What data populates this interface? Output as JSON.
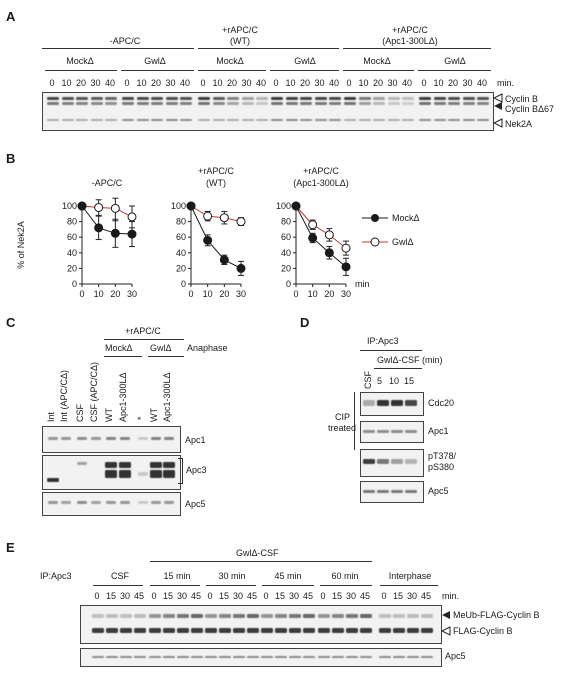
{
  "panels": {
    "A": {
      "letter": "A",
      "groups": [
        "-APC/C",
        "+rAPC/C\n(WT)",
        "+rAPC/C\n(Apc1-300LΔ)"
      ],
      "conditions": [
        "MockΔ",
        "GwlΔ"
      ],
      "timepoints": [
        "0",
        "10",
        "20",
        "30",
        "40"
      ],
      "unit": "min.",
      "bands": [
        "Cyclin B",
        "Cyclin BΔ67",
        "Nek2A"
      ]
    },
    "B": {
      "letter": "B",
      "ylabel": "% of Nek2A",
      "unit": "min",
      "legend": [
        "MockΔ",
        "GwlΔ"
      ]
    },
    "C": {
      "letter": "C",
      "header": "+rAPC/C",
      "conditions": [
        "MockΔ",
        "GwlΔ"
      ],
      "anaphase": "Anaphase",
      "lanes": [
        "Int",
        "Int (APC/CΔ)",
        "CSF",
        "CSF (APC/CΔ)",
        "WT",
        "Apc1-300LΔ",
        "*",
        "WT",
        "Apc1-300LΔ"
      ],
      "bands": [
        "Apc1",
        "Apc3",
        "Apc5"
      ]
    },
    "D": {
      "letter": "D",
      "ip": "IP:Apc3",
      "condition": "GwlΔ-CSF (min)",
      "lanes": [
        "CSF",
        "5",
        "10",
        "15"
      ],
      "side_label": "CIP\ntreated",
      "bands": [
        "Cdc20",
        "Apc1",
        "pT378/\npS380",
        "Apc5"
      ]
    },
    "E": {
      "letter": "E",
      "ip": "IP:Apc3",
      "condition": "GwlΔ-CSF",
      "groups": [
        "CSF",
        "15 min",
        "30 min",
        "45 min",
        "60 min",
        "Interphase"
      ],
      "timepoints": [
        "0",
        "15",
        "30",
        "45"
      ],
      "unit": "min.",
      "bands": [
        "MeUb-FLAG-Cyclin B",
        "FLAG-Cyclin B",
        "Apc5"
      ]
    }
  },
  "chart_data": [
    {
      "type": "line",
      "title": "-APC/C",
      "xlabel": "",
      "ylabel": "% of Nek2A",
      "x": [
        0,
        10,
        20,
        30
      ],
      "xticks": [
        0,
        10,
        20,
        30
      ],
      "yticks": [
        0,
        20,
        40,
        60,
        80,
        100
      ],
      "xlim": [
        0,
        30
      ],
      "ylim": [
        0,
        100
      ],
      "series": [
        {
          "name": "MockΔ",
          "values": [
            100,
            72,
            65,
            64
          ],
          "errors": [
            0,
            15,
            18,
            16
          ],
          "color": "#1a1a1a",
          "marker": "filled"
        },
        {
          "name": "GwlΔ",
          "values": [
            100,
            98,
            97,
            86
          ],
          "errors": [
            0,
            10,
            16,
            14
          ],
          "color": "#c0392b",
          "marker": "open"
        }
      ]
    },
    {
      "type": "line",
      "title": "+rAPC/C\n(WT)",
      "xlabel": "",
      "ylabel": "",
      "x": [
        0,
        10,
        20,
        30
      ],
      "xticks": [
        0,
        10,
        20,
        30
      ],
      "yticks": [
        0,
        20,
        40,
        60,
        80,
        100
      ],
      "xlim": [
        0,
        30
      ],
      "ylim": [
        0,
        100
      ],
      "series": [
        {
          "name": "MockΔ",
          "values": [
            100,
            56,
            31,
            20
          ],
          "errors": [
            0,
            7,
            6,
            9
          ],
          "color": "#1a1a1a",
          "marker": "filled"
        },
        {
          "name": "GwlΔ",
          "values": [
            100,
            87,
            85,
            80
          ],
          "errors": [
            0,
            6,
            8,
            5
          ],
          "color": "#c0392b",
          "marker": "open"
        }
      ]
    },
    {
      "type": "line",
      "title": "+rAPC/C\n(Apc1-300LΔ)",
      "xlabel": "",
      "ylabel": "",
      "unit": "min",
      "x": [
        0,
        10,
        20,
        30
      ],
      "xticks": [
        0,
        10,
        20,
        30
      ],
      "yticks": [
        0,
        20,
        40,
        60,
        80,
        100
      ],
      "xlim": [
        0,
        30
      ],
      "ylim": [
        0,
        100
      ],
      "series": [
        {
          "name": "MockΔ",
          "values": [
            100,
            59,
            40,
            22
          ],
          "errors": [
            0,
            6,
            8,
            11
          ],
          "color": "#1a1a1a",
          "marker": "filled"
        },
        {
          "name": "GwlΔ",
          "values": [
            100,
            76,
            63,
            46
          ],
          "errors": [
            0,
            6,
            8,
            9
          ],
          "color": "#c0392b",
          "marker": "open"
        }
      ]
    }
  ]
}
